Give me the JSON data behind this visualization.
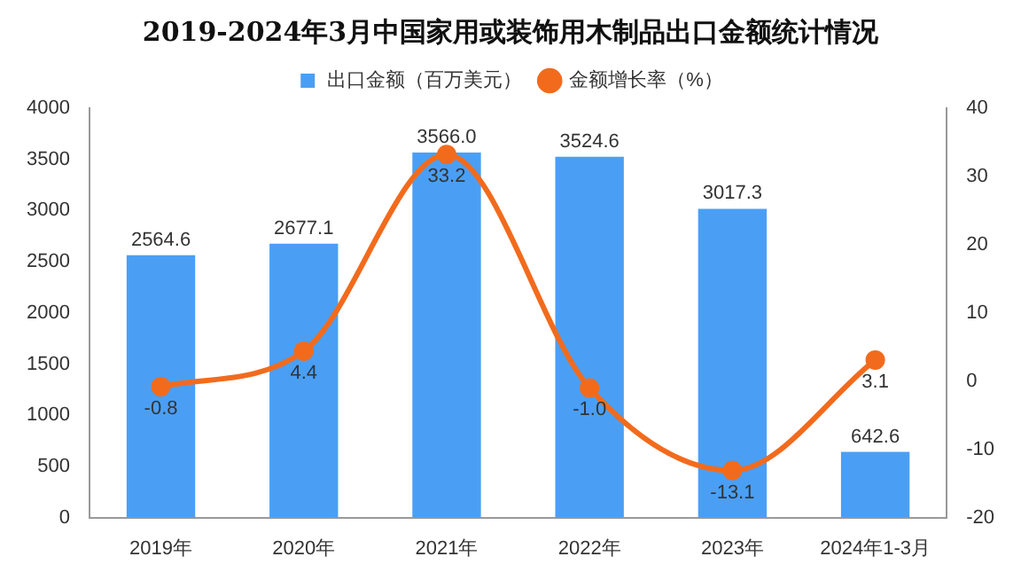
{
  "chart_data": {
    "type": "bar",
    "title": "2019-2024年3月中国家用或装饰用木制品出口金额统计情况",
    "categories": [
      "2019年",
      "2020年",
      "2021年",
      "2022年",
      "2023年",
      "2024年1-3月"
    ],
    "series": [
      {
        "name": "出口金额（百万美元）",
        "color": "#4a9ff5",
        "values": [
          2564.6,
          2677.1,
          3566.0,
          3524.6,
          3017.3,
          642.6
        ],
        "value_labels": [
          "2564.6",
          "2677.1",
          "3566.0",
          "3524.6",
          "3017.3",
          "642.6"
        ]
      },
      {
        "name": "金额增长率（%）",
        "type": "line",
        "axis": "y2",
        "color": "#f26b1d",
        "values": [
          -0.8,
          4.4,
          33.2,
          -1.0,
          -13.1,
          3.1
        ],
        "value_labels": [
          "-0.8",
          "4.4",
          "33.2",
          "-1.0",
          "-13.1",
          "3.1"
        ]
      }
    ],
    "ylim": [
      0,
      4000
    ],
    "yticks": [
      0,
      500,
      1000,
      1500,
      2000,
      2500,
      3000,
      3500,
      4000
    ],
    "y2lim": [
      -20,
      40
    ],
    "y2ticks": [
      -20,
      -10,
      0,
      10,
      20,
      30,
      40
    ],
    "legend": "top",
    "grid": false,
    "marker": "circle"
  }
}
